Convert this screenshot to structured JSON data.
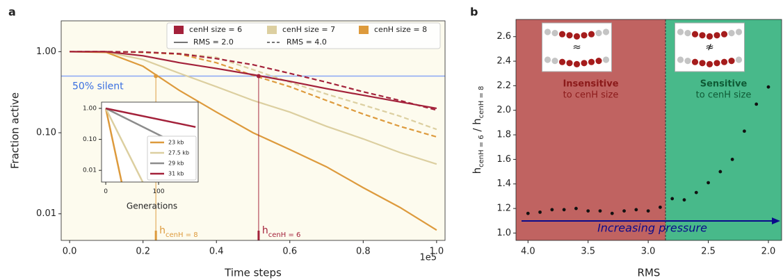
{
  "chart_data": [
    {
      "type": "line",
      "panel": "a",
      "xlabel": "Time steps",
      "ylabel": "Fraction active",
      "x_offset_label": "1e5",
      "log_y": true,
      "xlim": [
        -0.023,
        1.023
      ],
      "ylim": [
        0.0047,
        2.4
      ],
      "xticks": [
        {
          "value": 0,
          "label": "0.0"
        },
        0.2,
        0.4,
        0.6,
        0.8,
        {
          "value": 1,
          "label": "1.0"
        }
      ],
      "yticks": [
        {
          "value": 0.01,
          "label": "0.01"
        },
        {
          "value": 0.1,
          "label": "0.10"
        },
        {
          "value": 1,
          "label": "1.00"
        }
      ],
      "x": [
        0,
        0.1,
        0.2,
        0.3,
        0.4,
        0.5,
        0.6,
        0.7,
        0.8,
        0.9,
        1.0
      ],
      "legend": {
        "colors": [
          {
            "label": "cenH size = 6",
            "color": "#a3213a"
          },
          {
            "label": "cenH size = 7",
            "color": "#dccfa0"
          },
          {
            "label": "cenH size = 8",
            "color": "#dd9a3c"
          }
        ],
        "styles": [
          {
            "label": "RMS = 2.0",
            "dashed": false
          },
          {
            "label": "RMS = 4.0",
            "dashed": true
          }
        ]
      },
      "series": [
        {
          "color": "#dccfa0",
          "dashed": true,
          "values": [
            1,
            1,
            0.99,
            0.95,
            0.85,
            0.6,
            0.42,
            0.3,
            0.22,
            0.16,
            0.11
          ]
        },
        {
          "color": "#dd9a3c",
          "dashed": true,
          "values": [
            1,
            1,
            0.98,
            0.93,
            0.73,
            0.51,
            0.37,
            0.25,
            0.17,
            0.12,
            0.089
          ]
        },
        {
          "color": "#a3213a",
          "dashed": true,
          "values": [
            1,
            1,
            0.99,
            0.94,
            0.82,
            0.69,
            0.54,
            0.42,
            0.32,
            0.25,
            0.19
          ]
        },
        {
          "color": "#dccfa0",
          "dashed": false,
          "values": [
            1,
            0.99,
            0.8,
            0.54,
            0.37,
            0.25,
            0.18,
            0.12,
            0.084,
            0.057,
            0.041
          ]
        },
        {
          "color": "#dd9a3c",
          "dashed": false,
          "values": [
            1,
            0.98,
            0.66,
            0.33,
            0.18,
            0.1,
            0.062,
            0.038,
            0.021,
            0.012,
            0.0063
          ]
        },
        {
          "color": "#a3213a",
          "dashed": false,
          "values": [
            1,
            1,
            0.89,
            0.73,
            0.62,
            0.52,
            0.43,
            0.35,
            0.29,
            0.24,
            0.2
          ]
        }
      ],
      "threshold": {
        "value": 0.5,
        "label": "50% silent",
        "color": "#8aa6f5"
      },
      "annotations": [
        {
          "x": 0.235,
          "y": 0.5,
          "color": "#dd9a3c",
          "text": [
            "h",
            "cenH = 8"
          ]
        },
        {
          "x": 0.515,
          "y": 0.5,
          "color": "#a3213a",
          "text": [
            "h",
            "cenH = 6"
          ]
        }
      ]
    },
    {
      "type": "line",
      "xlabel": "Generations",
      "log_y": true,
      "xlim": [
        -8,
        175
      ],
      "ylim": [
        0.0042,
        1.59
      ],
      "xticks": [
        0,
        100
      ],
      "yticks": [
        {
          "value": 0.01,
          "label": "0.01"
        },
        {
          "value": 0.1,
          "label": "0.10"
        },
        {
          "value": 1,
          "label": "1.00"
        }
      ],
      "series": [
        {
          "name": "23 kb",
          "color": "#dd9a3c",
          "x": [
            0,
            30
          ],
          "values": [
            1,
            0.0042
          ]
        },
        {
          "name": "27.5 kb",
          "color": "#dccfa0",
          "x": [
            0,
            70
          ],
          "values": [
            1,
            0.0042
          ]
        },
        {
          "name": "29 kb",
          "color": "#8c8c8c",
          "x": [
            0,
            113
          ],
          "values": [
            1,
            0.11
          ]
        },
        {
          "name": "31 kb",
          "color": "#a3213a",
          "x": [
            0,
            170
          ],
          "values": [
            1,
            0.25
          ]
        }
      ]
    },
    {
      "type": "scatter",
      "panel": "b",
      "xlabel": "RMS",
      "ylabel": [
        "h",
        "cenH = 6",
        " / ",
        "h",
        "cenH = 8"
      ],
      "xlim": [
        4.1,
        1.89
      ],
      "ylim": [
        0.94,
        2.74
      ],
      "xticks": [
        {
          "value": 4,
          "label": "4.0"
        },
        3.5,
        {
          "value": 3,
          "label": "3.0"
        },
        2.5,
        {
          "value": 2,
          "label": "2.0"
        }
      ],
      "yticks": [
        {
          "value": 1,
          "label": "1.0"
        },
        1.2,
        1.4,
        1.6,
        1.8,
        {
          "value": 2,
          "label": "2.0"
        },
        2.2,
        2.4,
        2.6
      ],
      "x": [
        4.0,
        3.9,
        3.8,
        3.7,
        3.6,
        3.5,
        3.4,
        3.3,
        3.2,
        3.1,
        3.0,
        2.9,
        2.8,
        2.7,
        2.6,
        2.5,
        2.4,
        2.3,
        2.2,
        2.1,
        2.0
      ],
      "values": [
        1.16,
        1.17,
        1.19,
        1.19,
        1.2,
        1.18,
        1.18,
        1.16,
        1.18,
        1.19,
        1.18,
        1.21,
        1.28,
        1.27,
        1.33,
        1.41,
        1.5,
        1.6,
        1.83,
        2.05,
        2.19
      ],
      "color": "#111111",
      "boundary": 2.856,
      "regions": [
        {
          "label": "Insensitive",
          "sublabel": "to cenH size",
          "color": "#c06361",
          "text_color": "#8b1a1a",
          "icon": "≈"
        },
        {
          "label": "Sensitive",
          "sublabel": "to cenH size",
          "color": "#48b98a",
          "text_color": "#0f5a35",
          "icon": "≉"
        }
      ],
      "arrow_label": "Increasing pressure"
    }
  ]
}
